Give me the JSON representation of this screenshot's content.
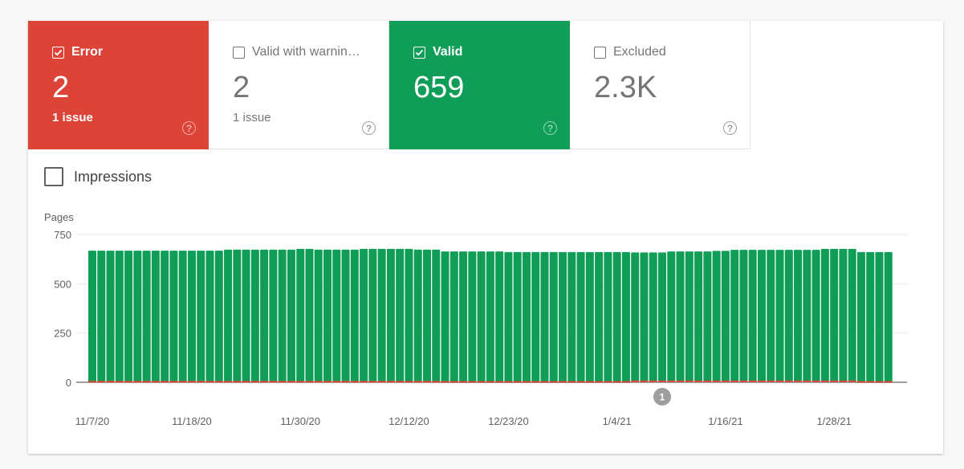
{
  "tiles": [
    {
      "label": "Error",
      "value": "2",
      "sub": "1 issue",
      "checked": true
    },
    {
      "label": "Valid with warnin…",
      "value": "2",
      "sub": "1 issue",
      "checked": false
    },
    {
      "label": "Valid",
      "value": "659",
      "sub": "",
      "checked": true
    },
    {
      "label": "Excluded",
      "value": "2.3K",
      "sub": "",
      "checked": false
    }
  ],
  "help_glyph": "?",
  "impressions_label": "Impressions",
  "colors": {
    "error": "#db4437",
    "valid": "#0f9d58"
  },
  "chart_data": {
    "type": "bar",
    "ylabel": "Pages",
    "ylim": [
      0,
      750
    ],
    "yticks": [
      "0",
      "250",
      "500",
      "750"
    ],
    "ytick_values": [
      0,
      250,
      500,
      750
    ],
    "x_start": "11/7/20",
    "x_end": "2/3/21",
    "xtick_labels": [
      "11/7/20",
      "11/18/20",
      "11/30/20",
      "12/12/20",
      "12/23/20",
      "1/4/21",
      "1/16/21",
      "1/28/21"
    ],
    "xtick_index": [
      0,
      11,
      23,
      35,
      46,
      58,
      70,
      82
    ],
    "annotation": {
      "label": "1",
      "index": 63
    },
    "series": [
      {
        "name": "Valid",
        "values": [
          665,
          665,
          665,
          665,
          665,
          665,
          665,
          665,
          665,
          665,
          665,
          665,
          665,
          665,
          665,
          670,
          670,
          670,
          670,
          670,
          670,
          670,
          670,
          674,
          674,
          670,
          670,
          670,
          670,
          670,
          674,
          674,
          674,
          674,
          674,
          674,
          670,
          670,
          670,
          662,
          662,
          662,
          662,
          662,
          662,
          662,
          659,
          659,
          659,
          659,
          659,
          659,
          659,
          659,
          659,
          659,
          659,
          659,
          659,
          659,
          654,
          654,
          654,
          654,
          659,
          659,
          659,
          659,
          659,
          662,
          662,
          667,
          667,
          667,
          667,
          667,
          667,
          667,
          667,
          667,
          667,
          672,
          672,
          672,
          672,
          659,
          659,
          659,
          659
        ]
      },
      {
        "name": "Error",
        "values": [
          3,
          3,
          3,
          3,
          3,
          3,
          3,
          3,
          3,
          3,
          3,
          3,
          3,
          3,
          3,
          3,
          3,
          3,
          3,
          3,
          3,
          3,
          3,
          3,
          3,
          3,
          3,
          3,
          3,
          3,
          3,
          3,
          3,
          3,
          3,
          3,
          3,
          3,
          3,
          2,
          2,
          2,
          2,
          2,
          2,
          2,
          2,
          2,
          2,
          2,
          2,
          2,
          2,
          2,
          2,
          2,
          2,
          2,
          2,
          2,
          5,
          5,
          5,
          5,
          5,
          5,
          5,
          5,
          5,
          5,
          5,
          5,
          5,
          5,
          5,
          5,
          5,
          5,
          5,
          5,
          5,
          5,
          5,
          5,
          5,
          2,
          2,
          2,
          2
        ]
      }
    ]
  }
}
